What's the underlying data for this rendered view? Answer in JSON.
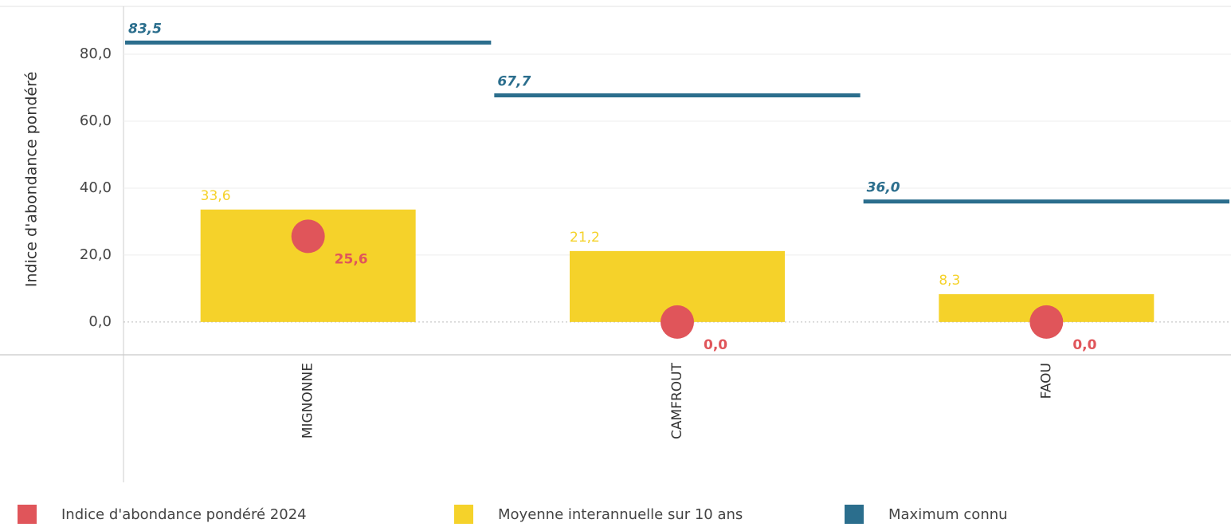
{
  "chart_data": {
    "type": "bar",
    "y_label": "Indice d'abondance pondéré",
    "categories": [
      "MIGNONNE",
      "CAMFROUT",
      "FAOU"
    ],
    "series": [
      {
        "name": "Indice d'abondance pondéré 2024",
        "type": "scatter",
        "color": "#e0555a",
        "values": [
          25.6,
          0,
          0
        ],
        "value_labels": [
          "25,6",
          "0,0",
          "0,0"
        ]
      },
      {
        "name": "Moyenne interannuelle sur 10 ans",
        "type": "bar",
        "color": "#f5d22a",
        "values": [
          33.6,
          21.2,
          8.3
        ],
        "value_labels": [
          "33,6",
          "21,2",
          "8,3"
        ]
      },
      {
        "name": "Maximum connu",
        "type": "line",
        "color": "#2b6e8d",
        "values": [
          83.5,
          67.7,
          36.0
        ],
        "value_labels": [
          "83,5",
          "67,7",
          "36,0"
        ]
      }
    ],
    "ylim": [
      -9.8,
      94.3
    ],
    "yticks": [
      {
        "value": 0,
        "label": "0,0"
      },
      {
        "value": 20,
        "label": "20,0"
      },
      {
        "value": 40,
        "label": "40,0"
      },
      {
        "value": 60,
        "label": "60,0"
      },
      {
        "value": 80,
        "label": "80,0"
      }
    ],
    "grid": true,
    "legend": "bottom"
  }
}
